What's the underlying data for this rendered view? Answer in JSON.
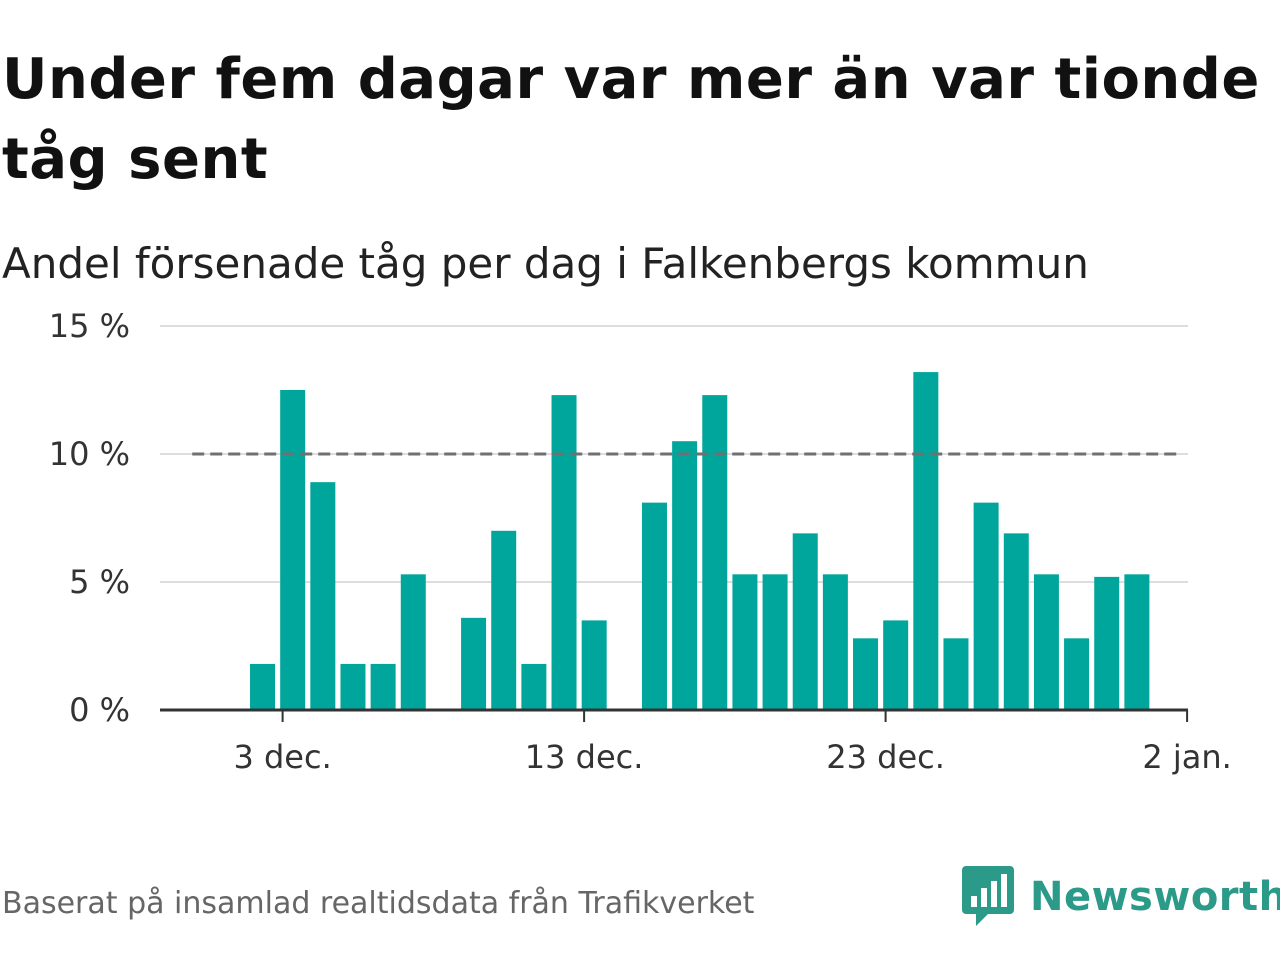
{
  "title": "Under fem dagar var mer än var tionde tåg sent",
  "subtitle": "Andel försenade tåg per dag i Falkenbergs kommun",
  "footer": {
    "source": "Baserat på insamlad realtidsdata från Trafikverket",
    "brand": "Newsworthy"
  },
  "colors": {
    "bar": "#00a69c",
    "threshold": "#707070",
    "grid": "#dddddd",
    "axis": "#333333",
    "brand": "#2b9a88"
  },
  "chart_data": {
    "type": "bar",
    "x_start": "2023-11-29",
    "ylim": [
      0,
      15
    ],
    "grid": true,
    "y_ticks": [
      {
        "value": 0,
        "label": "0 %"
      },
      {
        "value": 5,
        "label": "5 %"
      },
      {
        "value": 10,
        "label": "10 %"
      },
      {
        "value": 15,
        "label": "15 %"
      }
    ],
    "x_ticks": [
      {
        "date": "2023-12-03",
        "label": "3 dec."
      },
      {
        "date": "2023-12-13",
        "label": "13 dec."
      },
      {
        "date": "2023-12-23",
        "label": "23 dec."
      },
      {
        "date": "2024-01-02",
        "label": "2 jan."
      }
    ],
    "threshold": {
      "value": 10,
      "from": "2023-11-30",
      "to": "2024-01-01"
    },
    "bars": [
      {
        "date": "2023-12-02",
        "value": 1.8
      },
      {
        "date": "2023-12-03",
        "value": 12.5
      },
      {
        "date": "2023-12-04",
        "value": 8.9
      },
      {
        "date": "2023-12-05",
        "value": 1.8
      },
      {
        "date": "2023-12-06",
        "value": 1.8
      },
      {
        "date": "2023-12-07",
        "value": 5.3
      },
      {
        "date": "2023-12-09",
        "value": 3.6
      },
      {
        "date": "2023-12-10",
        "value": 7.0
      },
      {
        "date": "2023-12-11",
        "value": 1.8
      },
      {
        "date": "2023-12-12",
        "value": 12.3
      },
      {
        "date": "2023-12-13",
        "value": 3.5
      },
      {
        "date": "2023-12-15",
        "value": 8.1
      },
      {
        "date": "2023-12-16",
        "value": 10.5
      },
      {
        "date": "2023-12-17",
        "value": 12.3
      },
      {
        "date": "2023-12-18",
        "value": 5.3
      },
      {
        "date": "2023-12-19",
        "value": 5.3
      },
      {
        "date": "2023-12-20",
        "value": 6.9
      },
      {
        "date": "2023-12-21",
        "value": 5.3
      },
      {
        "date": "2023-12-22",
        "value": 2.8
      },
      {
        "date": "2023-12-23",
        "value": 3.5
      },
      {
        "date": "2023-12-24",
        "value": 13.2
      },
      {
        "date": "2023-12-25",
        "value": 2.8
      },
      {
        "date": "2023-12-26",
        "value": 8.1
      },
      {
        "date": "2023-12-27",
        "value": 6.9
      },
      {
        "date": "2023-12-28",
        "value": 5.3
      },
      {
        "date": "2023-12-29",
        "value": 2.8
      },
      {
        "date": "2023-12-30",
        "value": 5.2
      },
      {
        "date": "2023-12-31",
        "value": 5.3
      }
    ]
  }
}
